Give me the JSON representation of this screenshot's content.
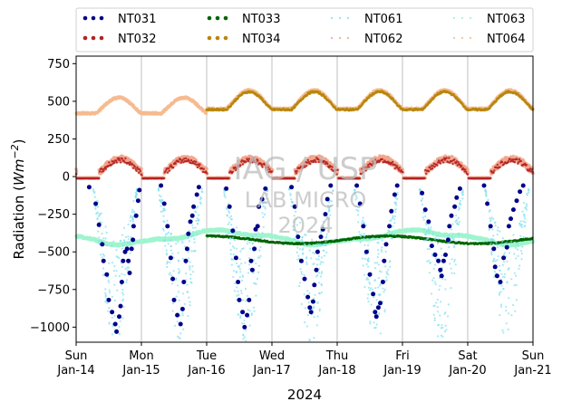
{
  "chart_data": {
    "type": "scatter",
    "title": "",
    "xlabel": "2024",
    "ylabel": "Radiation (Wm⁻²)",
    "ylabel_main": "Radiation (",
    "ylabel_unit": "Wm",
    "ylabel_exp": "−2",
    "ylabel_close": ")",
    "ylim": [
      -1100,
      800
    ],
    "yticks": [
      750,
      500,
      250,
      0,
      -250,
      -500,
      -750,
      -1000
    ],
    "ytick_labels": [
      "750",
      "500",
      "250",
      "0",
      "−250",
      "−500",
      "−750",
      "−1000"
    ],
    "xlim": [
      "2024-01-14",
      "2024-01-21"
    ],
    "xticks": [
      {
        "day": "Sun",
        "date": "Jan-14"
      },
      {
        "day": "Mon",
        "date": "Jan-15"
      },
      {
        "day": "Tue",
        "date": "Jan-16"
      },
      {
        "day": "Wed",
        "date": "Jan-17"
      },
      {
        "day": "Thu",
        "date": "Jan-18"
      },
      {
        "day": "Fri",
        "date": "Jan-19"
      },
      {
        "day": "Sat",
        "date": "Jan-20"
      },
      {
        "day": "Sun",
        "date": "Jan-21"
      }
    ],
    "grid": "vertical",
    "legend_position": "top",
    "watermark": [
      "IAG / USP",
      "LAB MICRO",
      "2024"
    ],
    "series": [
      {
        "name": "NT031",
        "color": "#00008b",
        "style": "dots",
        "description": "nighttime/daytime negative scattered points",
        "points": [
          [
            0.2,
            -70
          ],
          [
            0.3,
            -180
          ],
          [
            0.35,
            -320
          ],
          [
            0.4,
            -450
          ],
          [
            0.42,
            -560
          ],
          [
            0.47,
            -650
          ],
          [
            0.5,
            -820
          ],
          [
            0.55,
            -900
          ],
          [
            0.6,
            -980
          ],
          [
            0.62,
            -1030
          ],
          [
            0.66,
            -930
          ],
          [
            0.68,
            -860
          ],
          [
            0.7,
            -700
          ],
          [
            0.72,
            -560
          ],
          [
            0.75,
            -500
          ],
          [
            0.78,
            -480
          ],
          [
            0.8,
            -560
          ],
          [
            0.82,
            -640
          ],
          [
            0.85,
            -480
          ],
          [
            0.87,
            -420
          ],
          [
            0.88,
            -330
          ],
          [
            0.92,
            -260
          ],
          [
            0.95,
            -160
          ],
          [
            0.97,
            -90
          ],
          [
            1.3,
            -60
          ],
          [
            1.35,
            -180
          ],
          [
            1.4,
            -330
          ],
          [
            1.45,
            -540
          ],
          [
            1.48,
            -680
          ],
          [
            1.5,
            -820
          ],
          [
            1.55,
            -920
          ],
          [
            1.6,
            -980
          ],
          [
            1.63,
            -880
          ],
          [
            1.65,
            -700
          ],
          [
            1.68,
            -560
          ],
          [
            1.7,
            -480
          ],
          [
            1.72,
            -380
          ],
          [
            1.75,
            -300
          ],
          [
            1.78,
            -260
          ],
          [
            1.8,
            -200
          ],
          [
            1.85,
            -120
          ],
          [
            1.88,
            -70
          ],
          [
            2.3,
            -80
          ],
          [
            2.35,
            -200
          ],
          [
            2.4,
            -360
          ],
          [
            2.45,
            -540
          ],
          [
            2.48,
            -700
          ],
          [
            2.5,
            -820
          ],
          [
            2.55,
            -900
          ],
          [
            2.58,
            -1000
          ],
          [
            2.62,
            -920
          ],
          [
            2.65,
            -820
          ],
          [
            2.68,
            -560
          ],
          [
            2.7,
            -620
          ],
          [
            2.73,
            -480
          ],
          [
            2.75,
            -350
          ],
          [
            2.78,
            -330
          ],
          [
            2.8,
            -200
          ],
          [
            2.85,
            -150
          ],
          [
            2.9,
            -80
          ],
          [
            3.3,
            -70
          ],
          [
            3.35,
            -200
          ],
          [
            3.4,
            -400
          ],
          [
            3.45,
            -560
          ],
          [
            3.5,
            -680
          ],
          [
            3.55,
            -800
          ],
          [
            3.58,
            -870
          ],
          [
            3.6,
            -900
          ],
          [
            3.63,
            -830
          ],
          [
            3.65,
            -720
          ],
          [
            3.68,
            -620
          ],
          [
            3.7,
            -500
          ],
          [
            3.75,
            -400
          ],
          [
            3.78,
            -350
          ],
          [
            3.82,
            -250
          ],
          [
            3.85,
            -150
          ],
          [
            3.9,
            -60
          ],
          [
            4.3,
            -60
          ],
          [
            4.35,
            -180
          ],
          [
            4.4,
            -330
          ],
          [
            4.45,
            -500
          ],
          [
            4.5,
            -650
          ],
          [
            4.55,
            -780
          ],
          [
            4.58,
            -900
          ],
          [
            4.6,
            -930
          ],
          [
            4.63,
            -870
          ],
          [
            4.66,
            -840
          ],
          [
            4.7,
            -700
          ],
          [
            4.72,
            -560
          ],
          [
            4.75,
            -450
          ],
          [
            4.8,
            -330
          ],
          [
            4.83,
            -230
          ],
          [
            4.88,
            -120
          ],
          [
            4.92,
            -60
          ],
          [
            5.3,
            -110
          ],
          [
            5.35,
            -220
          ],
          [
            5.4,
            -300
          ],
          [
            5.45,
            -460
          ],
          [
            5.5,
            -520
          ],
          [
            5.55,
            -560
          ],
          [
            5.58,
            -620
          ],
          [
            5.6,
            -660
          ],
          [
            5.63,
            -560
          ],
          [
            5.66,
            -520
          ],
          [
            5.7,
            -420
          ],
          [
            5.72,
            -330
          ],
          [
            5.75,
            -260
          ],
          [
            5.8,
            -200
          ],
          [
            5.83,
            -140
          ],
          [
            5.88,
            -80
          ],
          [
            6.25,
            -60
          ],
          [
            6.3,
            -180
          ],
          [
            6.35,
            -330
          ],
          [
            6.4,
            -480
          ],
          [
            6.42,
            -600
          ],
          [
            6.45,
            -660
          ],
          [
            6.5,
            -700
          ],
          [
            6.55,
            -540
          ],
          [
            6.6,
            -470
          ],
          [
            6.63,
            -330
          ],
          [
            6.66,
            -280
          ],
          [
            6.7,
            -220
          ],
          [
            6.75,
            -160
          ],
          [
            6.8,
            -100
          ],
          [
            6.85,
            -60
          ]
        ]
      },
      {
        "name": "NT032",
        "color": "#b22222",
        "style": "dots",
        "description": "near-zero daytime bumps"
      },
      {
        "name": "NT033",
        "color": "#006400",
        "style": "dots",
        "description": "longwave around -450"
      },
      {
        "name": "NT034",
        "color": "#b8860b",
        "style": "dots",
        "description": "longwave around +450"
      },
      {
        "name": "NT061",
        "color": "#7fdfef",
        "style": "faint",
        "description": "light cyan scattered shortwave points"
      },
      {
        "name": "NT062",
        "color": "#f1a58c",
        "style": "faint",
        "description": "salmon near-zero line"
      },
      {
        "name": "NT063",
        "color": "#9ff5cf",
        "style": "faint",
        "description": "light green longwave line"
      },
      {
        "name": "NT064",
        "color": "#f6bb90",
        "style": "faint",
        "description": "peach longwave line around +450"
      }
    ]
  }
}
